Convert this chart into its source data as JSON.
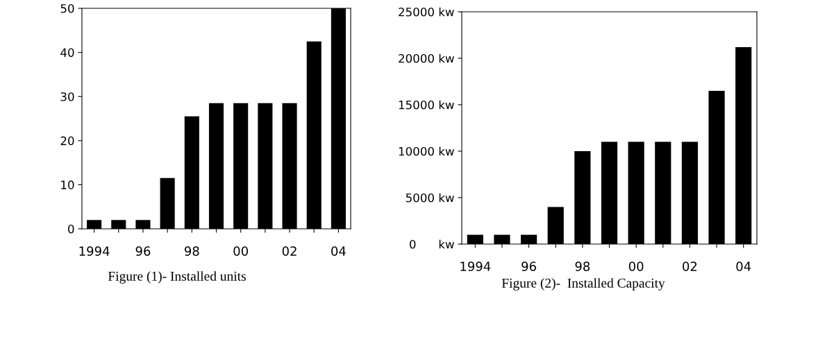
{
  "chart_data": [
    {
      "type": "bar",
      "categories": [
        "1994",
        null,
        "96",
        null,
        "98",
        null,
        "00",
        null,
        "02",
        null,
        "04"
      ],
      "values": [
        2,
        2,
        2,
        11.5,
        25.5,
        28.5,
        28.5,
        28.5,
        28.5,
        42.5,
        50
      ],
      "color": "#000000",
      "ylim": [
        0,
        50
      ],
      "yticks": [
        0,
        10,
        20,
        30,
        40,
        50
      ],
      "grid": false,
      "annotations": [
        "Figure (1)- Installed units"
      ]
    },
    {
      "type": "bar",
      "categories": [
        "1994",
        null,
        "96",
        null,
        "98",
        null,
        "00",
        null,
        "02",
        null,
        "04"
      ],
      "values": [
        1000,
        1000,
        1000,
        4000,
        10000,
        11000,
        11000,
        11000,
        11000,
        16500,
        21200
      ],
      "color": "#000000",
      "ylim": [
        0,
        25000
      ],
      "yticks": [
        {
          "value": 0,
          "label": "0      kw"
        },
        {
          "value": 5000,
          "label": "5000 kw"
        },
        {
          "value": 10000,
          "label": "10000 kw"
        },
        {
          "value": 15000,
          "label": "15000 kw"
        },
        {
          "value": 20000,
          "label": "20000 kw"
        },
        {
          "value": 25000,
          "label": "25000 kw"
        }
      ],
      "grid": false,
      "annotations": [
        "Figure (2)-  Installed Capacity"
      ]
    }
  ]
}
